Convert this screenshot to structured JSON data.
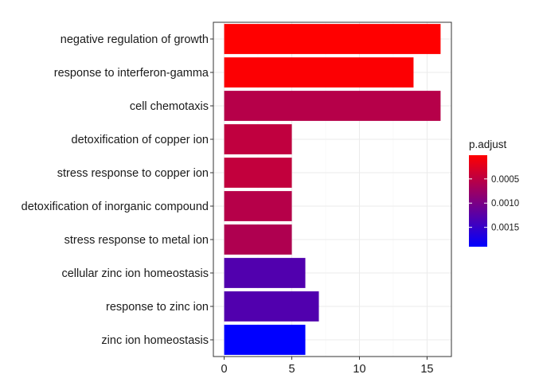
{
  "chart_data": {
    "type": "bar",
    "orientation": "horizontal",
    "categories": [
      "negative regulation of growth",
      "response to interferon-gamma",
      "cell chemotaxis",
      "detoxification of copper ion",
      "stress response to copper ion",
      "detoxification of inorganic compound",
      "stress response to metal ion",
      "cellular zinc ion homeostasis",
      "response to zinc ion",
      "zinc ion homeostasis"
    ],
    "values": [
      16,
      14,
      16,
      5,
      5,
      5,
      5,
      6,
      7,
      6
    ],
    "p_adjust": [
      1e-05,
      3e-05,
      0.00055,
      0.00048,
      0.00046,
      0.00055,
      0.0006,
      0.0013,
      0.0013,
      0.0019
    ],
    "xlim": [
      -0.8,
      16.8
    ],
    "xticks": [
      0,
      5,
      10,
      15
    ],
    "grid": true,
    "title": "",
    "xlabel": "",
    "ylabel": "",
    "legend": {
      "title": "p.adjust",
      "placement": "right",
      "min": 1e-05,
      "max": 0.0019,
      "ticks": [
        0.0005,
        0.001,
        0.0015
      ],
      "tick_labels": [
        "0.0005",
        "0.0010",
        "0.0015"
      ],
      "color_low_p": "#FF0000",
      "color_high_p": "#0000FF"
    },
    "colors": {
      "panel_border": "#333333",
      "grid_major": "#EBEBEB",
      "grid_minor": "#F5F5F5"
    }
  }
}
